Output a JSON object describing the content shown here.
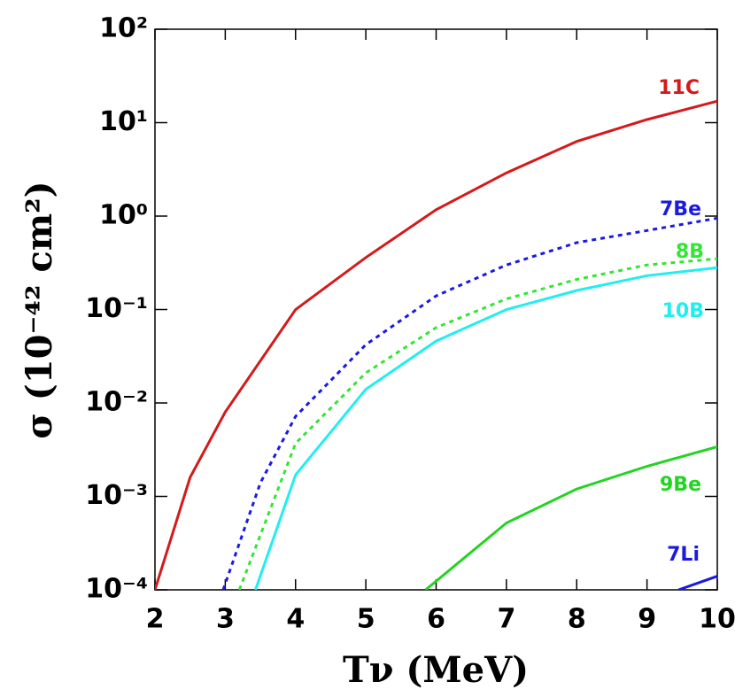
{
  "chart_data": {
    "type": "line",
    "x_label": "Tν (MeV)",
    "y_label": "σ (10⁻⁴² cm²)",
    "ylog": true,
    "xlim": [
      2,
      10
    ],
    "ylim": [
      0.0001,
      100
    ],
    "xticks": [
      2,
      3,
      4,
      5,
      6,
      7,
      8,
      9,
      10
    ],
    "yticks": [
      {
        "value": 0.0001,
        "label": "10⁻⁴"
      },
      {
        "value": 0.001,
        "label": "10⁻³"
      },
      {
        "value": 0.01,
        "label": "10⁻²"
      },
      {
        "value": 0.1,
        "label": "10⁻¹"
      },
      {
        "value": 1,
        "label": "10⁰"
      },
      {
        "value": 10,
        "label": "10¹"
      },
      {
        "value": 100,
        "label": "10²"
      }
    ],
    "series": [
      {
        "name": "11C",
        "color": "#d41a1a",
        "style": "solid",
        "x": [
          2,
          2.5,
          3,
          4,
          5,
          6,
          7,
          8,
          9,
          10
        ],
        "values": [
          0.0001,
          0.0016,
          0.008,
          0.1,
          0.36,
          1.17,
          2.9,
          6.3,
          10.8,
          17
        ]
      },
      {
        "name": "7Be",
        "color": "#1a1ae0",
        "style": "dotted",
        "x": [
          2.97,
          3.5,
          4,
          5,
          6,
          7,
          8,
          9,
          10
        ],
        "values": [
          0.0001,
          0.0014,
          0.0072,
          0.042,
          0.14,
          0.3,
          0.52,
          0.7,
          0.95
        ]
      },
      {
        "name": "8B",
        "color": "#33e633",
        "style": "dotted",
        "x": [
          3.2,
          4,
          5,
          6,
          7,
          8,
          9,
          10
        ],
        "values": [
          0.0001,
          0.0037,
          0.021,
          0.064,
          0.13,
          0.21,
          0.3,
          0.35
        ]
      },
      {
        "name": "10B",
        "color": "#22eeee",
        "style": "solid",
        "x": [
          3.43,
          4,
          5,
          6,
          7,
          8,
          9,
          10
        ],
        "values": [
          0.0001,
          0.0017,
          0.014,
          0.046,
          0.1,
          0.16,
          0.23,
          0.28
        ]
      },
      {
        "name": "9Be",
        "color": "#22d422",
        "style": "solid",
        "x": [
          5.85,
          7,
          8,
          9,
          10
        ],
        "values": [
          0.0001,
          0.00052,
          0.0012,
          0.0021,
          0.0034
        ]
      },
      {
        "name": "7Li",
        "color": "#1a1ae0",
        "style": "solid",
        "x": [
          9.45,
          10
        ],
        "values": [
          0.0001,
          0.00014
        ]
      }
    ]
  }
}
